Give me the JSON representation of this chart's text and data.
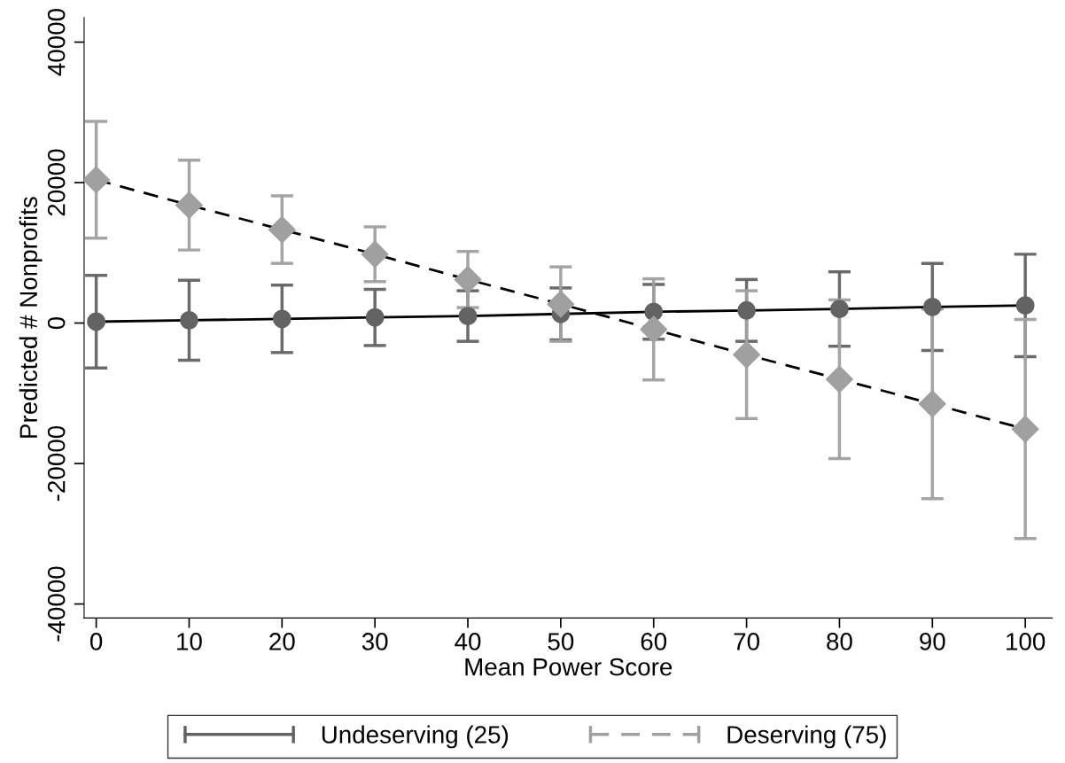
{
  "chart_data": {
    "type": "line",
    "xlabel": "Mean Power Score",
    "ylabel": "Predicted # Nonprofits",
    "x": [
      0,
      10,
      20,
      30,
      40,
      50,
      60,
      70,
      80,
      90,
      100
    ],
    "series": [
      {
        "name": "Undeserving (25)",
        "color": "#636363",
        "marker": "circle",
        "line_style": "solid",
        "values": [
          200,
          400,
          600,
          800,
          1000,
          1300,
          1600,
          1800,
          2000,
          2300,
          2500
        ],
        "errors": [
          6600,
          5700,
          4800,
          4000,
          3600,
          3700,
          3900,
          4400,
          5300,
          6200,
          7300
        ]
      },
      {
        "name": "Deserving (75)",
        "color": "#a0a0a0",
        "marker": "diamond",
        "line_style": "dashed",
        "values": [
          20400,
          16800,
          13300,
          9800,
          6200,
          2700,
          -900,
          -4500,
          -8000,
          -11500,
          -15100
        ],
        "errors": [
          8300,
          6400,
          4800,
          3900,
          4000,
          5300,
          7200,
          9100,
          11300,
          13500,
          15600
        ]
      }
    ],
    "xlim": [
      -1.3,
      102.9
    ],
    "xticks": [
      0,
      10,
      20,
      30,
      40,
      50,
      60,
      70,
      80,
      90,
      100
    ],
    "ylim": [
      -42000,
      43500
    ],
    "yticks": [
      -40000,
      -20000,
      0,
      20000,
      40000
    ],
    "grid": false,
    "legend": "bottom"
  }
}
